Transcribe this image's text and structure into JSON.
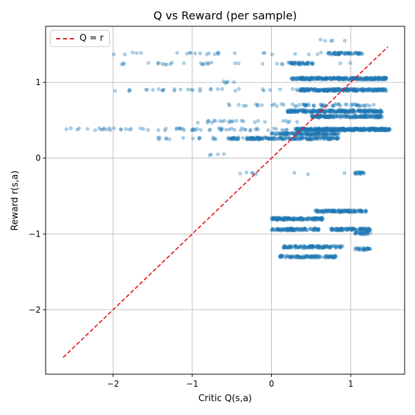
{
  "chart_data": {
    "type": "scatter",
    "title": "Q vs Reward (per sample)",
    "xlabel": "Critic Q(s,a)",
    "ylabel": "Reward r(s,a)",
    "xlim": [
      -2.85,
      1.68
    ],
    "ylim": [
      -2.85,
      1.74
    ],
    "xticks": [
      -2,
      -1,
      0,
      1
    ],
    "yticks": [
      -2,
      -1,
      0,
      1
    ],
    "xtick_labels": [
      "−2",
      "−1",
      "0",
      "1"
    ],
    "ytick_labels": [
      "−2",
      "−1",
      "0",
      "1"
    ],
    "grid": true,
    "legend_position": "top-left",
    "colors": {
      "points": "#1f77b4",
      "reference_line": "#e41a1c",
      "grid": "#b0b0b0"
    },
    "reference_line": {
      "name": "Q = r",
      "style": "dashed",
      "x": [
        -2.63,
        1.47
      ],
      "y": [
        -2.63,
        1.47
      ]
    },
    "series": [
      {
        "name": "",
        "point_alpha": 0.35,
        "clusters": [
          {
            "x": [
              0.5,
              0.95
            ],
            "y": 1.55,
            "n": 5
          },
          {
            "x": [
              -2.0,
              1.1
            ],
            "y": 1.38,
            "n": 28
          },
          {
            "x": [
              0.7,
              1.15
            ],
            "y": 1.38,
            "n": 60
          },
          {
            "x": [
              -1.95,
              1.0
            ],
            "y": 1.25,
            "n": 30
          },
          {
            "x": [
              0.2,
              0.55
            ],
            "y": 1.25,
            "n": 45
          },
          {
            "x": [
              0.25,
              1.45
            ],
            "y": 1.05,
            "n": 300
          },
          {
            "x": [
              -0.65,
              -0.45
            ],
            "y": 1.0,
            "n": 5
          },
          {
            "x": [
              -2.0,
              1.45
            ],
            "y": 0.9,
            "n": 45
          },
          {
            "x": [
              0.35,
              1.45
            ],
            "y": 0.9,
            "n": 250
          },
          {
            "x": [
              0.4,
              1.3
            ],
            "y": 0.7,
            "n": 45
          },
          {
            "x": [
              -0.55,
              0.55
            ],
            "y": 0.7,
            "n": 20
          },
          {
            "x": [
              0.2,
              1.4
            ],
            "y": 0.62,
            "n": 280
          },
          {
            "x": [
              0.5,
              1.4
            ],
            "y": 0.55,
            "n": 180
          },
          {
            "x": [
              -0.95,
              0.4
            ],
            "y": 0.48,
            "n": 25
          },
          {
            "x": [
              -2.65,
              1.5
            ],
            "y": 0.38,
            "n": 90
          },
          {
            "x": [
              0.3,
              1.5
            ],
            "y": 0.38,
            "n": 420
          },
          {
            "x": [
              0.0,
              0.85
            ],
            "y": 0.32,
            "n": 150
          },
          {
            "x": [
              -1.45,
              -0.7
            ],
            "y": 0.26,
            "n": 15
          },
          {
            "x": [
              -0.55,
              0.85
            ],
            "y": 0.26,
            "n": 200
          },
          {
            "x": [
              -0.8,
              -0.6
            ],
            "y": 0.05,
            "n": 4
          },
          {
            "x": [
              -0.4,
              0.95
            ],
            "y": -0.2,
            "n": 8
          },
          {
            "x": [
              1.05,
              1.2
            ],
            "y": -0.2,
            "n": 20
          },
          {
            "x": [
              0.55,
              1.2
            ],
            "y": -0.7,
            "n": 120
          },
          {
            "x": [
              0.0,
              0.65
            ],
            "y": -0.8,
            "n": 150
          },
          {
            "x": [
              0.0,
              0.6
            ],
            "y": -0.94,
            "n": 110
          },
          {
            "x": [
              0.75,
              1.25
            ],
            "y": -0.94,
            "n": 100
          },
          {
            "x": [
              1.05,
              1.25
            ],
            "y": -0.99,
            "n": 30
          },
          {
            "x": [
              0.15,
              0.9
            ],
            "y": -1.17,
            "n": 120
          },
          {
            "x": [
              1.05,
              1.25
            ],
            "y": -1.2,
            "n": 30
          },
          {
            "x": [
              0.1,
              0.82
            ],
            "y": -1.3,
            "n": 110
          }
        ]
      }
    ]
  }
}
